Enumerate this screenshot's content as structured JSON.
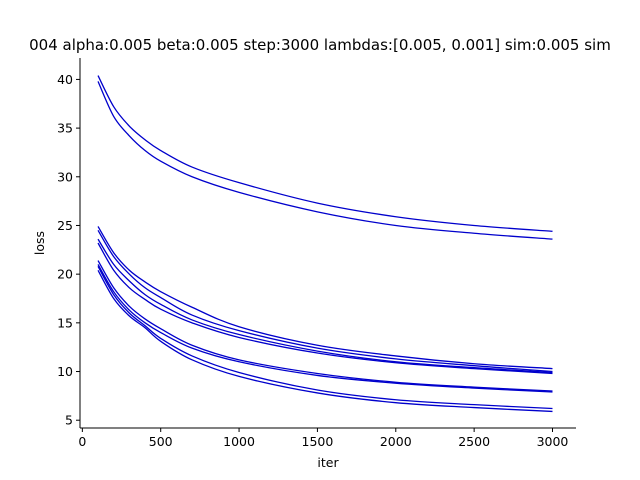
{
  "chart_data": {
    "type": "line",
    "title": "004 alpha:0.005 beta:0.005 step:3000 lambdas:[0.005, 0.001] sim:0.005 sim",
    "xlabel": "iter",
    "ylabel": "loss",
    "xlim": [
      -15,
      3150
    ],
    "ylim": [
      4.2,
      42.2
    ],
    "xticks": [
      0,
      500,
      1000,
      1500,
      2000,
      2500,
      3000
    ],
    "yticks": [
      5,
      10,
      15,
      20,
      25,
      30,
      35,
      40
    ],
    "grid": false,
    "legend": "none",
    "line_color": "#0000cc",
    "x": [
      100,
      200,
      300,
      400,
      500,
      700,
      1000,
      1500,
      2000,
      2500,
      3000
    ],
    "series": [
      {
        "values": [
          40.4,
          37.2,
          35.2,
          33.8,
          32.7,
          31.0,
          29.4,
          27.3,
          25.9,
          25.0,
          24.4
        ]
      },
      {
        "values": [
          39.8,
          36.2,
          34.2,
          32.7,
          31.6,
          30.0,
          28.4,
          26.4,
          25.0,
          24.2,
          23.6
        ]
      },
      {
        "values": [
          24.9,
          22.2,
          20.4,
          19.2,
          18.2,
          16.6,
          14.6,
          12.7,
          11.6,
          10.8,
          10.3
        ]
      },
      {
        "values": [
          24.5,
          21.8,
          20.0,
          18.6,
          17.6,
          15.8,
          14.2,
          12.4,
          11.3,
          10.6,
          10.0
        ]
      },
      {
        "values": [
          23.6,
          21.0,
          19.3,
          17.9,
          16.9,
          15.3,
          13.8,
          12.1,
          11.0,
          10.4,
          9.9
        ]
      },
      {
        "values": [
          23.2,
          20.4,
          18.6,
          17.4,
          16.4,
          15.0,
          13.5,
          11.9,
          10.9,
          10.3,
          9.8
        ]
      },
      {
        "values": [
          21.4,
          18.6,
          16.7,
          15.4,
          14.4,
          12.7,
          11.2,
          9.8,
          8.9,
          8.4,
          8.0
        ]
      },
      {
        "values": [
          21.0,
          18.2,
          16.3,
          15.0,
          14.0,
          12.4,
          11.0,
          9.6,
          8.8,
          8.3,
          7.9
        ]
      },
      {
        "values": [
          20.8,
          17.9,
          16.0,
          14.7,
          13.4,
          11.6,
          9.9,
          8.1,
          7.1,
          6.6,
          6.2
        ]
      },
      {
        "values": [
          20.4,
          17.5,
          15.7,
          14.5,
          13.1,
          11.2,
          9.5,
          7.8,
          6.8,
          6.3,
          5.9
        ]
      }
    ]
  }
}
